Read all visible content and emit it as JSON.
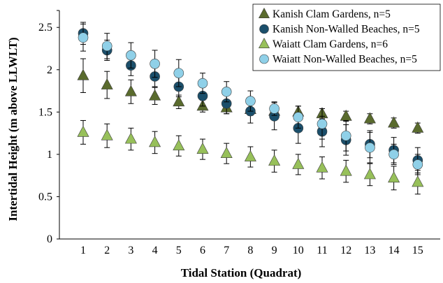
{
  "chart_data": {
    "type": "scatter",
    "xlabel": "Tidal Station (Quadrat)",
    "ylabel": "Intertidal Height (m above LLWLT)",
    "x": [
      1,
      2,
      3,
      4,
      5,
      6,
      7,
      8,
      9,
      10,
      11,
      12,
      13,
      14,
      15
    ],
    "xticks": [
      "1",
      "2",
      "3",
      "4",
      "5",
      "6",
      "7",
      "8",
      "9",
      "10",
      "11",
      "12",
      "13",
      "14",
      "15"
    ],
    "yticks": [
      "0",
      "0.5",
      "1",
      "1.5",
      "2",
      "2.5"
    ],
    "ylim": [
      0,
      2.7
    ],
    "grid": false,
    "legend_position": "top-right",
    "series": [
      {
        "name": "Kanish Clam Gardens, n=5",
        "marker": "triangle",
        "color": "#5a6b2d",
        "values": [
          1.93,
          1.82,
          1.74,
          1.69,
          1.62,
          1.57,
          1.55,
          1.53,
          1.51,
          1.5,
          1.48,
          1.45,
          1.42,
          1.37,
          1.31
        ],
        "err": [
          0.2,
          0.16,
          0.14,
          0.1,
          0.08,
          0.07,
          0.07,
          0.07,
          0.07,
          0.07,
          0.06,
          0.06,
          0.06,
          0.06,
          0.06
        ]
      },
      {
        "name": "Kanish Non-Walled Beaches, n=5",
        "marker": "circle",
        "color": "#1b4f6b",
        "values": [
          2.43,
          2.23,
          2.05,
          1.92,
          1.8,
          1.69,
          1.6,
          1.51,
          1.45,
          1.31,
          1.27,
          1.17,
          1.12,
          1.05,
          0.93
        ],
        "err": [
          0.13,
          0.12,
          0.12,
          0.12,
          0.12,
          0.12,
          0.12,
          0.14,
          0.16,
          0.18,
          0.18,
          0.18,
          0.16,
          0.15,
          0.15
        ]
      },
      {
        "name": "Waiatt Clam Gardens, n=6",
        "marker": "triangle",
        "color": "#97c05a",
        "values": [
          1.26,
          1.22,
          1.18,
          1.14,
          1.1,
          1.06,
          1.01,
          0.97,
          0.92,
          0.88,
          0.84,
          0.8,
          0.76,
          0.72,
          0.67
        ],
        "err": [
          0.14,
          0.14,
          0.13,
          0.13,
          0.12,
          0.12,
          0.12,
          0.12,
          0.13,
          0.12,
          0.13,
          0.13,
          0.13,
          0.14,
          0.14
        ]
      },
      {
        "name": "Waiatt Non-Walled Beaches, n=5",
        "marker": "circle",
        "color": "#8fd0e8",
        "values": [
          2.38,
          2.28,
          2.17,
          2.07,
          1.96,
          1.84,
          1.74,
          1.63,
          1.54,
          1.44,
          1.36,
          1.22,
          1.08,
          1.0,
          0.88
        ],
        "err": [
          0.16,
          0.15,
          0.15,
          0.16,
          0.16,
          0.12,
          0.12,
          0.12,
          0.08,
          0.13,
          0.18,
          0.18,
          0.18,
          0.12,
          0.12
        ]
      }
    ]
  }
}
